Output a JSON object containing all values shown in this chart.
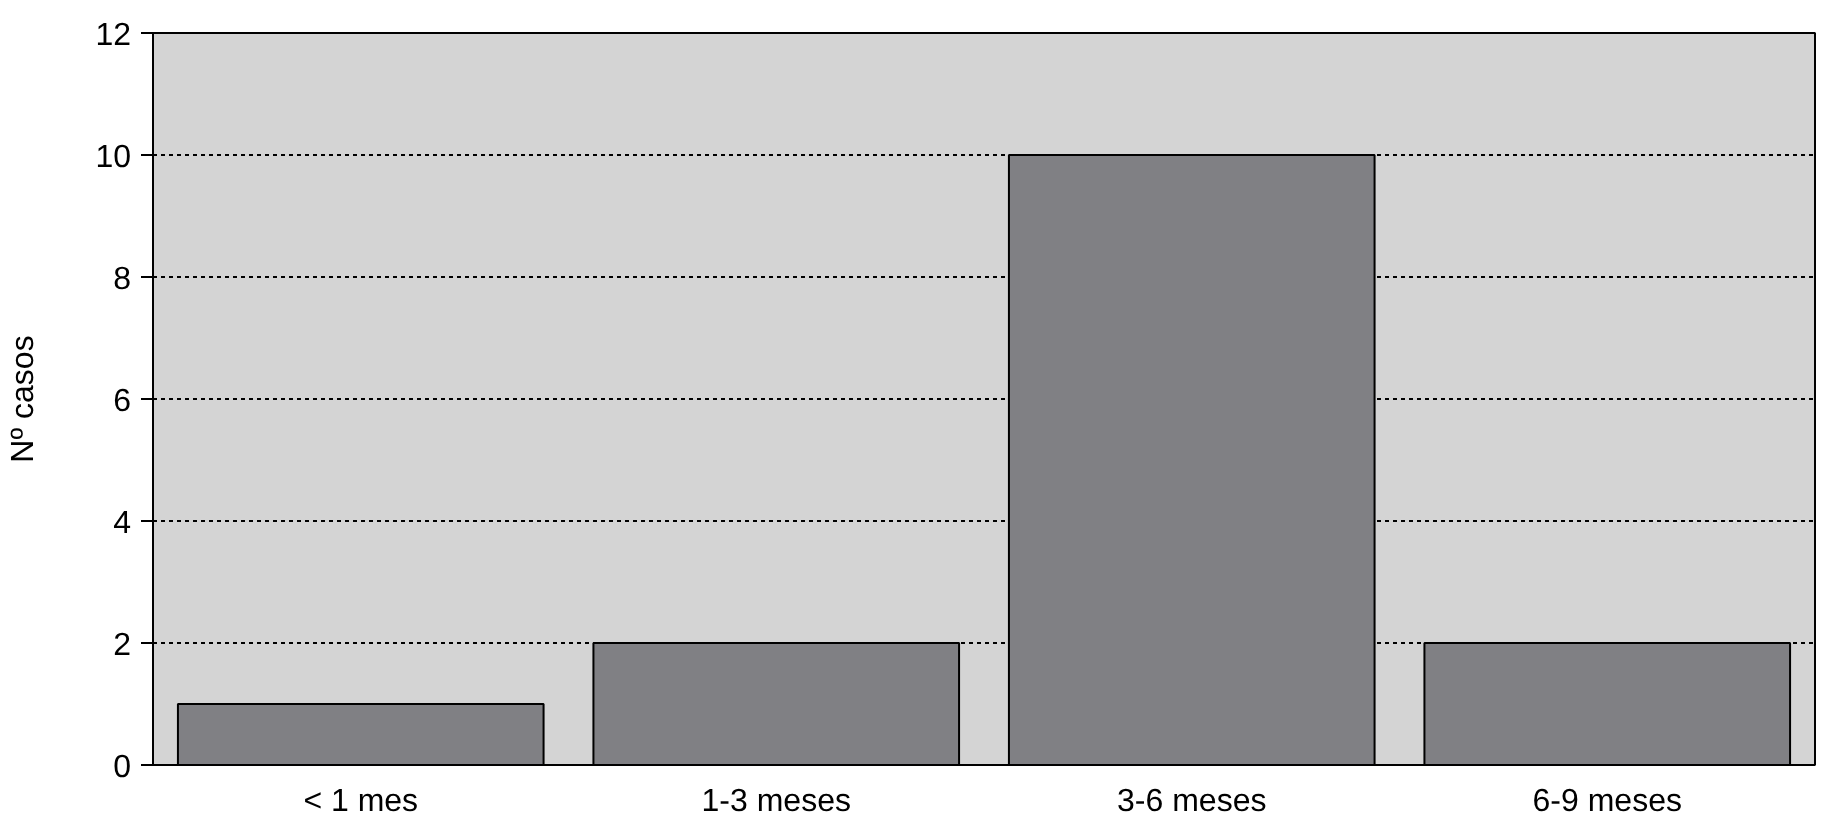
{
  "chart_data": {
    "type": "bar",
    "ylabel": "Nº casos",
    "categories": [
      "< 1 mes",
      "1-3 meses",
      "3-6 meses",
      "6-9 meses"
    ],
    "values": [
      1,
      2,
      10,
      2
    ],
    "color": "#808084",
    "ylim": [
      0,
      12
    ],
    "yticks": [
      0,
      2,
      4,
      6,
      8,
      10,
      12
    ],
    "grid": "y"
  }
}
